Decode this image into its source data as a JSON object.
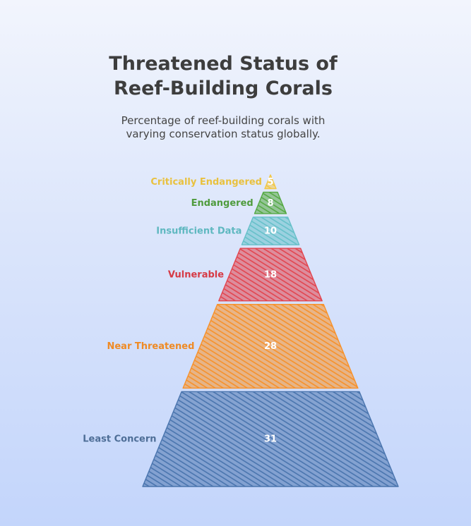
{
  "chart_data": {
    "type": "funnel",
    "title": [
      "Threatened Status of",
      "Reef-Building Corals"
    ],
    "subtitle": [
      "Percentage of reef-building corals with",
      "varying conservation status globally."
    ],
    "categories": [
      "Critically Endangered",
      "Endangered",
      "Insufficient Data",
      "Vulnerable",
      "Near Threatened",
      "Least Concern"
    ],
    "values": [
      5,
      8,
      10,
      18,
      28,
      31
    ],
    "colors": [
      "#f3c744",
      "#55a944",
      "#66c0c9",
      "#e2454f",
      "#f7912a",
      "#4a75ae"
    ],
    "label_colors": [
      "#e9c13f",
      "#4f9b3d",
      "#5fb8c0",
      "#d63a45",
      "#ef8a24",
      "#4e6e97"
    ]
  }
}
